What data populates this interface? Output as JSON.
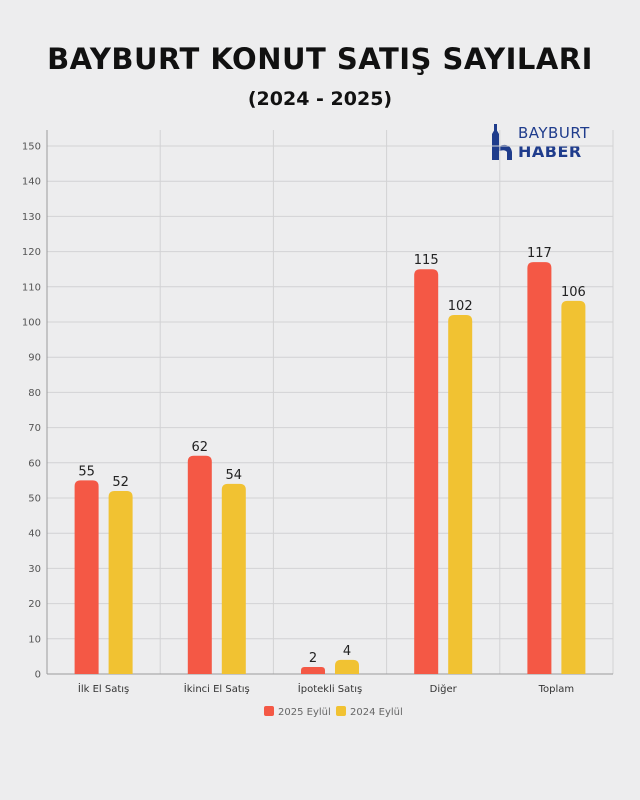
{
  "header": {
    "title": "BAYBURT KONUT SATIŞ SAYILARI",
    "subtitle": "(2024 - 2025)"
  },
  "logo": {
    "line1": "BAYBURT",
    "line2": "HABER",
    "color": "#1f3c8c"
  },
  "chart_data": {
    "type": "bar",
    "title": "BAYBURT KONUT SATIŞ SAYILARI",
    "subtitle": "(2024 - 2025)",
    "categories": [
      "İlk El Satış",
      "İkinci El Satış",
      "İpotekli Satış",
      "Diğer",
      "Toplam"
    ],
    "series": [
      {
        "name": "2025 Eylül",
        "color": "#f45845",
        "values": [
          55,
          62,
          2,
          115,
          117
        ]
      },
      {
        "name": "2024 Eylül",
        "color": "#f1c232",
        "values": [
          52,
          54,
          4,
          102,
          106
        ]
      }
    ],
    "ylim": [
      0,
      150
    ],
    "yticks": [
      0,
      10,
      20,
      30,
      40,
      50,
      60,
      70,
      80,
      90,
      100,
      110,
      120,
      130,
      140,
      150
    ],
    "xlabel": "",
    "ylabel": "",
    "grid": true,
    "legend": "bottom-center"
  }
}
